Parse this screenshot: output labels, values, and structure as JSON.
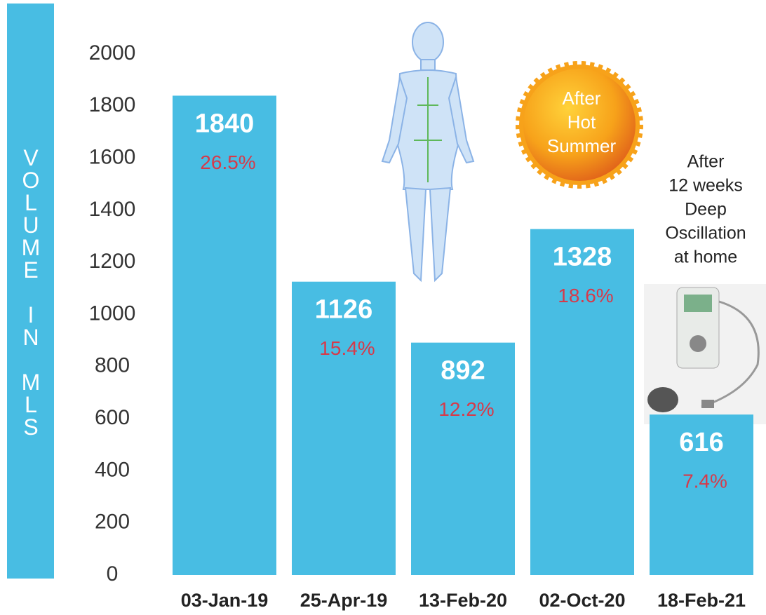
{
  "chart_data": {
    "type": "bar",
    "y_label": "VOLUME IN MLS",
    "categories": [
      "03-Jan-19",
      "25-Apr-19",
      "13-Feb-20",
      "02-Oct-20",
      "18-Feb-21"
    ],
    "values": [
      1840,
      1126,
      892,
      1328,
      616
    ],
    "percent_labels": [
      "26.5%",
      "15.4%",
      "12.2%",
      "18.6%",
      "7.4%"
    ],
    "color": "#48bde3",
    "ylim": [
      0,
      2000
    ],
    "yticks": [
      0,
      200,
      400,
      600,
      800,
      1000,
      1200,
      1400,
      1600,
      1800,
      2000
    ],
    "annotations": {
      "sun": [
        "After",
        "Hot",
        "Summer"
      ],
      "device": [
        "After",
        "12 weeks",
        "Deep",
        "Oscillation",
        "at home"
      ]
    }
  }
}
